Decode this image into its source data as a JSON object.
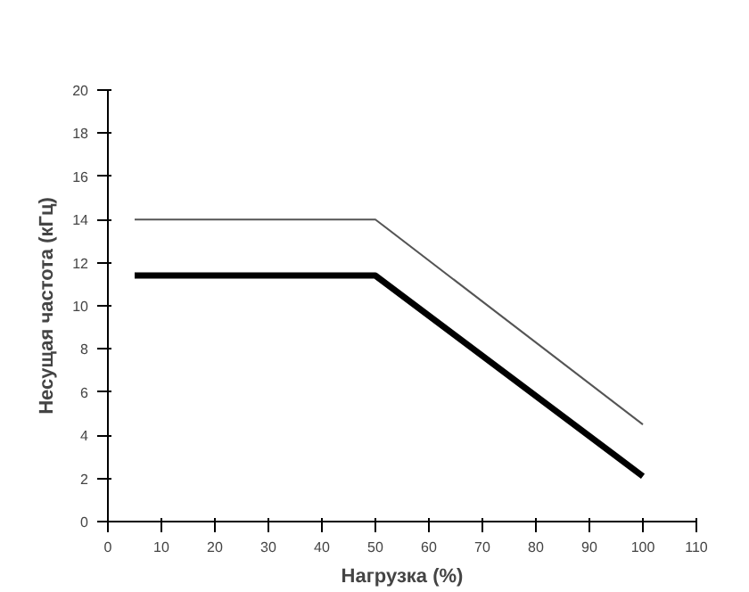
{
  "chart_data": {
    "type": "line",
    "xlabel": "Нагрузка (%)",
    "ylabel": "Несущая частота (кГц)",
    "xlim": [
      0,
      110
    ],
    "ylim": [
      0,
      20
    ],
    "xticks": [
      0,
      10,
      20,
      30,
      40,
      50,
      60,
      70,
      80,
      90,
      100,
      110
    ],
    "yticks": [
      0,
      2,
      4,
      6,
      8,
      10,
      12,
      14,
      16,
      18,
      20
    ],
    "grid": false,
    "marker": "none",
    "line_style": "solid",
    "series": [
      {
        "x": [
          5,
          50,
          100
        ],
        "values": [
          14,
          14,
          4.5
        ],
        "color": "#555555"
      },
      {
        "x": [
          5,
          50,
          100
        ],
        "values": [
          11.4,
          11.4,
          2.1
        ],
        "color": "#000000"
      }
    ]
  }
}
